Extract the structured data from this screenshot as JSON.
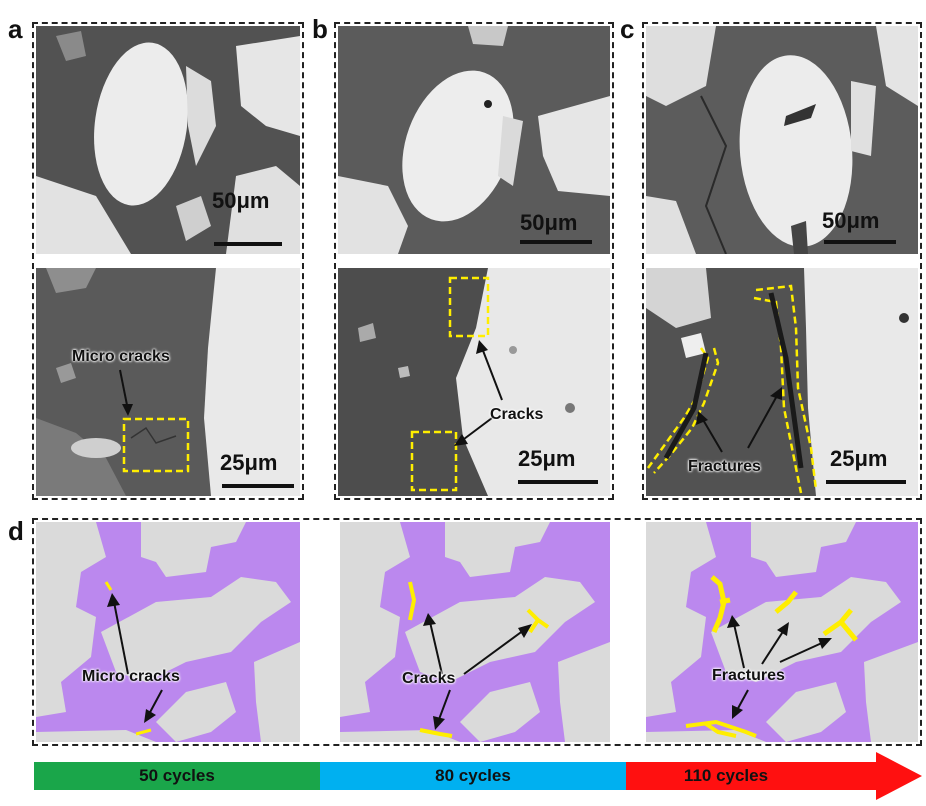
{
  "panels": {
    "a": {
      "label": "a",
      "scale_top": "50μm",
      "scale_bottom": "25μm",
      "annotation": "Micro  cracks"
    },
    "b": {
      "label": "b",
      "scale_top": "50μm",
      "scale_bottom": "25μm",
      "annotation": "Cracks"
    },
    "c": {
      "label": "c",
      "scale_top": "50μm",
      "scale_bottom": "25μm",
      "annotation": "Fractures"
    },
    "d": {
      "label": "d",
      "schematics": [
        {
          "annotation": "Micro cracks"
        },
        {
          "annotation": "Cracks"
        },
        {
          "annotation": "Fractures"
        }
      ]
    }
  },
  "timeline": {
    "stages": [
      {
        "label": "50 cycles",
        "color": "#1aa64a"
      },
      {
        "label": "80 cycles",
        "color": "#00b0f0"
      },
      {
        "label": "110 cycles",
        "color": "#ff1010"
      }
    ]
  },
  "colors": {
    "matrix_purple": "#bb88ee",
    "particle_gray": "#dadada",
    "crack_yellow": "#ffee00",
    "sem_dark": "#5a5a5a",
    "sem_light": "#e8e8e8"
  }
}
